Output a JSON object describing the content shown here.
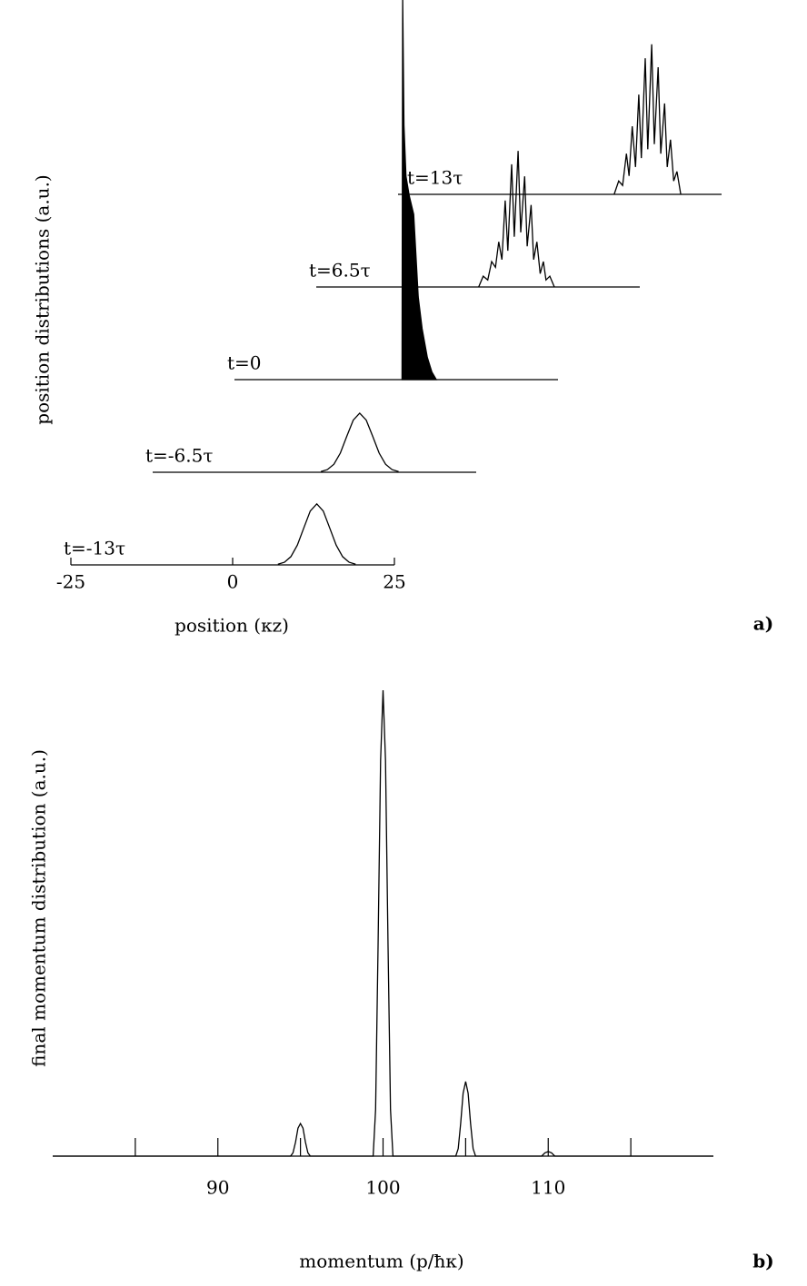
{
  "chart_data": [
    {
      "type": "waterfall",
      "xlabel": "position (κz)",
      "ylabel": "position distributions (a.u.)",
      "panel_label": "a)",
      "xlim": [
        -25,
        25
      ],
      "xticks": [
        -25,
        0,
        25
      ],
      "ylim": [
        0,
        6
      ],
      "color": "#000000",
      "series": [
        {
          "name": "t=-13τ",
          "x": [
            7,
            8,
            9,
            10,
            11,
            12,
            13,
            14,
            15,
            16,
            17,
            18,
            19
          ],
          "values": [
            0.011,
            0.042,
            0.13,
            0.311,
            0.582,
            0.847,
            0.96,
            0.847,
            0.582,
            0.311,
            0.13,
            0.042,
            0.011
          ]
        },
        {
          "name": "t=-6.5τ",
          "x": [
            1,
            2,
            3,
            4,
            5,
            6,
            7,
            8,
            9,
            10,
            11,
            12,
            13
          ],
          "values": [
            0.01,
            0.041,
            0.126,
            0.301,
            0.565,
            0.82,
            0.93,
            0.82,
            0.565,
            0.301,
            0.126,
            0.041,
            0.01
          ]
        },
        {
          "name": "t=0",
          "fill": true,
          "x": [
            0.9,
            1.0,
            1.2,
            1.5,
            2.0,
            2.7,
            3.4,
            4.0,
            4.8,
            5.5,
            6.2
          ],
          "values": [
            0,
            6,
            4,
            3.2,
            2.9,
            2.6,
            1.3,
            0.8,
            0.35,
            0.12,
            0
          ]
        },
        {
          "name": "t=6.5τ",
          "x": [
            0.1,
            0.8,
            1.5,
            2.1,
            2.7,
            3.2,
            3.7,
            4.2,
            4.6,
            5.2,
            5.6,
            6.2,
            6.6,
            7.2,
            7.6,
            8.2,
            8.6,
            9.1,
            9.6,
            10.1,
            10.5,
            11.1,
            11.8
          ],
          "values": [
            0,
            0.17,
            0.11,
            0.4,
            0.31,
            0.71,
            0.43,
            1.36,
            0.57,
            1.93,
            0.79,
            2.14,
            0.86,
            1.74,
            0.64,
            1.29,
            0.43,
            0.71,
            0.21,
            0.4,
            0.11,
            0.17,
            0
          ]
        },
        {
          "name": "t=13τ",
          "x": [
            8.4,
            9.1,
            9.7,
            10.3,
            10.7,
            11.2,
            11.7,
            12.2,
            12.6,
            13.2,
            13.6,
            14.2,
            14.6,
            15.2,
            15.6,
            16.2,
            16.6,
            17.1,
            17.6,
            18.1,
            18.7
          ],
          "values": [
            0,
            0.21,
            0.14,
            0.64,
            0.29,
            1.07,
            0.43,
            1.57,
            0.57,
            2.14,
            0.71,
            2.36,
            0.79,
            2,
            0.64,
            1.43,
            0.43,
            0.86,
            0.21,
            0.36,
            0
          ]
        }
      ]
    },
    {
      "type": "line",
      "xlabel": "momentum (p/ħκ)",
      "ylabel": "final momentum distribution (a.u.)",
      "panel_label": "b)",
      "xlim": [
        80,
        120
      ],
      "xticks": [
        90,
        100,
        110
      ],
      "minor_xticks": [
        85,
        95,
        105,
        115
      ],
      "ylim": [
        0,
        1
      ],
      "color": "#000000",
      "x": [
        80,
        94.4,
        94.55,
        94.7,
        94.85,
        95,
        95.15,
        95.3,
        95.45,
        95.6,
        99.4,
        99.55,
        99.7,
        99.85,
        100,
        100.15,
        100.3,
        100.45,
        100.6,
        104.4,
        104.55,
        104.7,
        104.85,
        105,
        105.15,
        105.3,
        105.45,
        105.6,
        109.6,
        109.8,
        110,
        110.2,
        110.4,
        120
      ],
      "values": [
        0,
        0,
        0.007,
        0.03,
        0.06,
        0.07,
        0.06,
        0.03,
        0.007,
        0,
        0,
        0.1,
        0.45,
        0.85,
        1,
        0.85,
        0.45,
        0.1,
        0,
        0,
        0.016,
        0.07,
        0.135,
        0.16,
        0.135,
        0.07,
        0.016,
        0,
        0,
        0.007,
        0.01,
        0.007,
        0,
        0
      ]
    }
  ]
}
